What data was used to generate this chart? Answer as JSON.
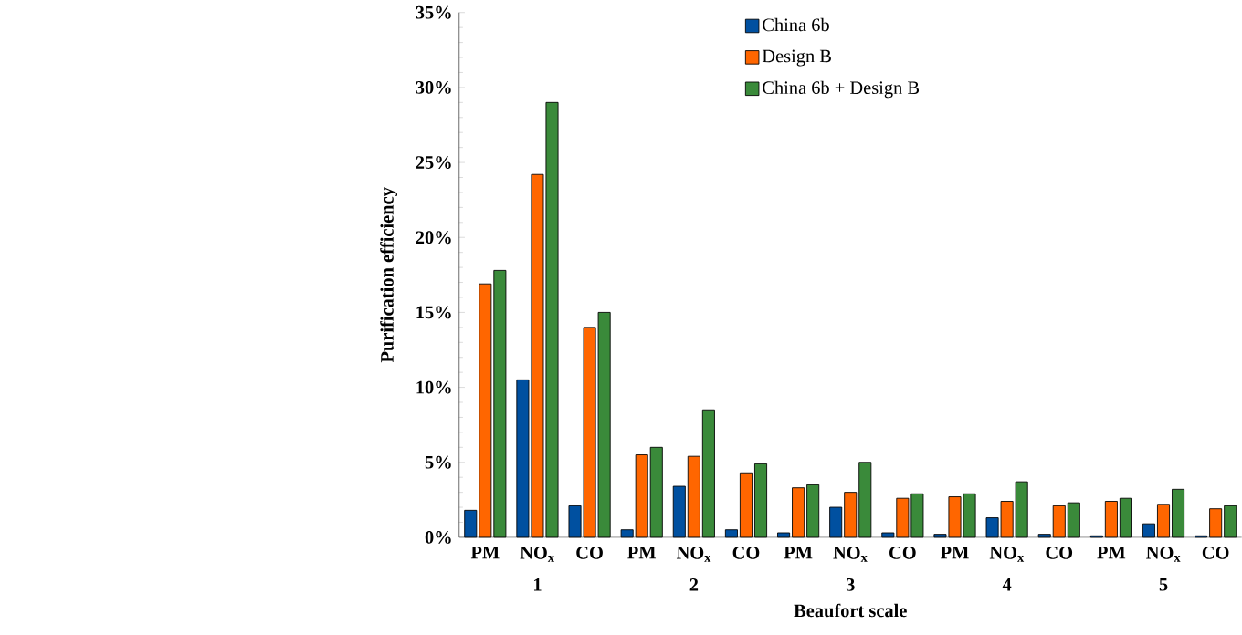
{
  "chart_data": {
    "type": "bar",
    "xlabel": "Beaufort scale",
    "ylabel": "Purification efficiency",
    "categories": [
      "PM",
      "NO$_{x}$",
      "CO",
      "PM",
      "NO$_{x}$",
      "CO",
      "PM",
      "NO$_{x}$",
      "CO",
      "PM",
      "NO$_{x}$",
      "CO",
      "PM",
      "NO$_{x}$",
      "CO"
    ],
    "series": [
      {
        "name": "China 6b",
        "color": "#0050a0",
        "values": [
          1.8,
          10.5,
          2.1,
          0.5,
          3.4,
          0.5,
          0.3,
          2.0,
          0.3,
          0.2,
          1.3,
          0.2,
          0.1,
          0.9,
          0.1
        ]
      },
      {
        "name": "Design B",
        "color": "#ff6600",
        "values": [
          16.9,
          24.2,
          14.0,
          5.5,
          5.4,
          4.3,
          3.3,
          3.0,
          2.6,
          2.7,
          2.4,
          2.1,
          2.4,
          2.2,
          1.9
        ]
      },
      {
        "name": "China 6b + Design B",
        "color": "#3a8a3a",
        "values": [
          17.8,
          29.0,
          15.0,
          6.0,
          8.5,
          4.9,
          3.5,
          5.0,
          2.9,
          2.9,
          3.7,
          2.3,
          2.6,
          3.2,
          2.1
        ]
      }
    ],
    "annotations": [
      "1",
      "2",
      "3",
      "4",
      "5"
    ],
    "ylim": [
      0,
      35
    ],
    "yticks": [
      {
        "value": 0,
        "label": "0%"
      },
      {
        "value": 5,
        "label": "5%"
      },
      {
        "value": 10,
        "label": "10%"
      },
      {
        "value": 15,
        "label": "15%"
      },
      {
        "value": 20,
        "label": "20%"
      },
      {
        "value": 25,
        "label": "25%"
      },
      {
        "value": 30,
        "label": "30%"
      },
      {
        "value": 35,
        "label": "35%"
      }
    ],
    "legend": "top",
    "grid": false
  }
}
